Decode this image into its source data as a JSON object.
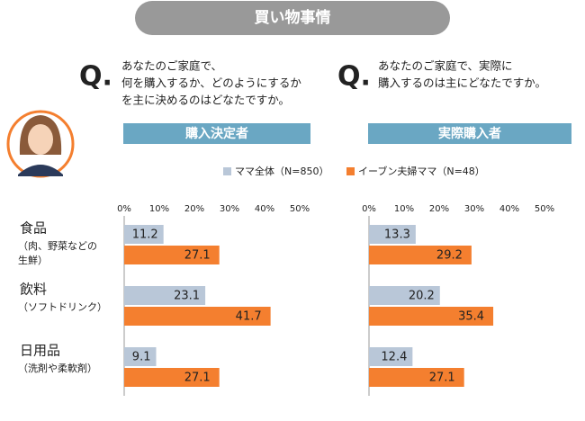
{
  "header": {
    "title": "買い物事情"
  },
  "questions": [
    {
      "mark": "Q.",
      "lines": [
        "あなたのご家庭で、",
        "何を購入するか、どのようにするか",
        "を主に決めるのはどなたですか。"
      ]
    },
    {
      "mark": "Q.",
      "lines": [
        "あなたのご家庭で、実際に",
        "購入するのは主にどなたですか。"
      ]
    }
  ],
  "legend": [
    {
      "name": "ママ全体（N=850）",
      "color": "#b9c7d8"
    },
    {
      "name": "イーブン夫婦ママ（N=48）",
      "color": "#f47f2f"
    }
  ],
  "chart_data": [
    {
      "type": "hbar",
      "title": "購入決定者",
      "categories": [
        "食品",
        "飲料",
        "日用品"
      ],
      "category_notes": [
        [
          "（肉、野菜などの",
          "生鮮）"
        ],
        [
          "（ソフトドリンク）"
        ],
        [
          "（洗剤や柔軟剤）"
        ]
      ],
      "series": [
        {
          "values": [
            11.2,
            23.1,
            9.1
          ]
        },
        {
          "values": [
            27.1,
            41.7,
            27.1
          ]
        }
      ],
      "xlim": [
        0,
        50
      ],
      "xticks": [
        {
          "value": 0,
          "label": "0%"
        },
        {
          "value": 10,
          "label": "10%"
        },
        {
          "value": 20,
          "label": "20%"
        },
        {
          "value": 30,
          "label": "30%"
        },
        {
          "value": 40,
          "label": "40%"
        },
        {
          "value": 50,
          "label": "50%"
        }
      ]
    },
    {
      "type": "hbar",
      "title": "実際購入者",
      "series": [
        {
          "values": [
            13.3,
            20.2,
            12.4
          ]
        },
        {
          "values": [
            29.2,
            35.4,
            27.1
          ]
        }
      ],
      "xlim": [
        0,
        50
      ],
      "xticks": [
        {
          "value": 0,
          "label": "0%"
        },
        {
          "value": 10,
          "label": "10%"
        },
        {
          "value": 20,
          "label": "20%"
        },
        {
          "value": 30,
          "label": "30%"
        },
        {
          "value": 40,
          "label": "40%"
        },
        {
          "value": 50,
          "label": "50%"
        }
      ]
    }
  ]
}
